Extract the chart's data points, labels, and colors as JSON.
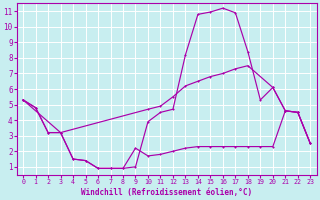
{
  "xlabel": "Windchill (Refroidissement éolien,°C)",
  "xlim": [
    -0.5,
    23.5
  ],
  "ylim": [
    0.5,
    11.5
  ],
  "xticks": [
    0,
    1,
    2,
    3,
    4,
    5,
    6,
    7,
    8,
    9,
    10,
    11,
    12,
    13,
    14,
    15,
    16,
    17,
    18,
    19,
    20,
    21,
    22,
    23
  ],
  "yticks": [
    1,
    2,
    3,
    4,
    5,
    6,
    7,
    8,
    9,
    10,
    11
  ],
  "background_color": "#c8eef0",
  "grid_color": "#ffffff",
  "line_color": "#aa00aa",
  "line1_x": [
    0,
    1,
    2,
    3,
    4,
    5,
    6,
    7,
    8,
    9,
    10,
    11,
    12,
    13,
    14,
    15,
    16,
    17,
    18,
    19,
    20,
    21,
    22,
    23
  ],
  "line1_y": [
    5.3,
    4.8,
    3.2,
    3.2,
    1.5,
    1.4,
    0.9,
    0.9,
    0.9,
    1.0,
    3.9,
    4.5,
    4.7,
    8.2,
    10.8,
    10.95,
    11.2,
    10.9,
    8.4,
    5.3,
    6.1,
    4.6,
    4.5,
    2.5
  ],
  "line2_x": [
    0,
    1,
    2,
    3,
    10,
    11,
    12,
    13,
    14,
    15,
    16,
    17,
    18,
    20,
    21,
    22,
    23
  ],
  "line2_y": [
    5.3,
    4.8,
    3.2,
    3.2,
    4.7,
    4.9,
    5.5,
    6.2,
    6.5,
    6.8,
    7.0,
    7.3,
    7.5,
    6.1,
    4.6,
    4.5,
    2.5
  ],
  "line3_x": [
    0,
    3,
    4,
    5,
    6,
    7,
    8,
    9,
    10,
    11,
    12,
    13,
    14,
    15,
    16,
    17,
    18,
    19,
    20,
    21,
    22,
    23
  ],
  "line3_y": [
    5.3,
    3.2,
    1.5,
    1.4,
    0.9,
    0.9,
    0.9,
    2.2,
    1.7,
    1.8,
    2.0,
    2.2,
    2.3,
    2.3,
    2.3,
    2.3,
    2.3,
    2.3,
    2.3,
    4.6,
    4.5,
    2.5
  ]
}
